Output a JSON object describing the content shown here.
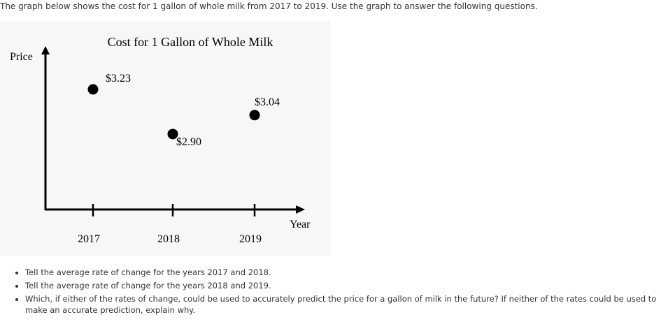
{
  "intro_text": "The graph below shows the cost for 1 gallon of whole milk from 2017 to 2019. Use the graph to answer the following questions.",
  "chart_data": {
    "type": "scatter",
    "title": "Cost for 1 Gallon of Whole Milk",
    "xlabel": "Year",
    "ylabel": "Price",
    "categories": [
      "2017",
      "2018",
      "2019"
    ],
    "values": [
      3.23,
      2.9,
      3.04
    ],
    "data_labels": [
      "$3.23",
      "$2.90",
      "$3.04"
    ],
    "grid": false,
    "colors": {
      "marker": "#000000",
      "axis": "#000000",
      "background": "#f7f7f7"
    }
  },
  "questions": [
    "Tell the average rate of change for the years 2017 and 2018.",
    "Tell the average rate of change for the years 2018 and 2019.",
    "Which, if either of the rates of change, could be used to accurately predict the price for a gallon of milk in the future? If neither of the rates could be used to make an accurate prediction, explain why."
  ]
}
